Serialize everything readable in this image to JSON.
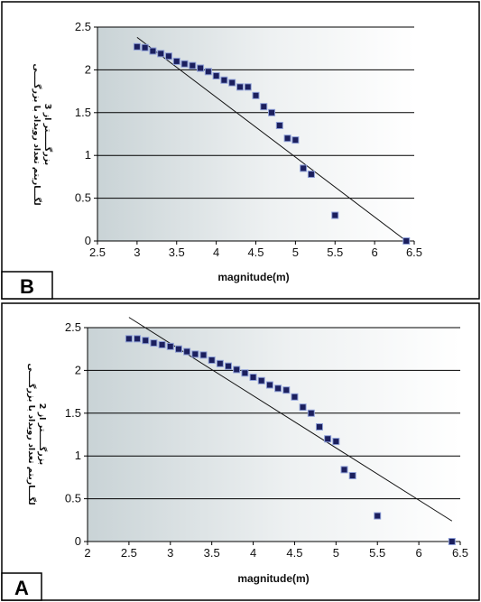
{
  "chart_data": [
    {
      "panel_label": "B",
      "type": "scatter",
      "xlabel": "magnitude(m)",
      "ylabel": [
        "لگـــاریتم تعداد رویداد با بزرگــــی",
        "بزرگـــــتر از 3"
      ],
      "xlim": [
        2.5,
        6.5
      ],
      "ylim": [
        0,
        2.5
      ],
      "xticks": [
        "2.5",
        "3",
        "3.5",
        "4",
        "4.5",
        "5",
        "5.5",
        "6",
        "6.5"
      ],
      "yticks": [
        "0",
        "0.5",
        "1",
        "1.5",
        "2",
        "2.5"
      ],
      "grid": "horizontal",
      "x": [
        3.0,
        3.1,
        3.2,
        3.3,
        3.4,
        3.5,
        3.6,
        3.7,
        3.8,
        3.9,
        4.0,
        4.1,
        4.2,
        4.3,
        4.4,
        4.5,
        4.6,
        4.7,
        4.8,
        4.9,
        5.0,
        5.1,
        5.2,
        5.5,
        6.4
      ],
      "y": [
        2.27,
        2.26,
        2.22,
        2.19,
        2.16,
        2.1,
        2.07,
        2.05,
        2.02,
        1.98,
        1.93,
        1.88,
        1.85,
        1.8,
        1.8,
        1.7,
        1.57,
        1.5,
        1.35,
        1.2,
        1.18,
        0.85,
        0.78,
        0.3,
        0.0
      ],
      "fit_line": {
        "x": [
          3.0,
          6.4
        ],
        "y": [
          2.38,
          0.0
        ]
      }
    },
    {
      "panel_label": "A",
      "type": "scatter",
      "xlabel": "magnitude(m)",
      "ylabel": [
        "لگـــاریتم تعداد رویداد با بزرگــــی",
        "بزرگـــــتر از 2"
      ],
      "xlim": [
        2,
        6.5
      ],
      "ylim": [
        0,
        2.5
      ],
      "xticks": [
        "2",
        "2.5",
        "3",
        "3.5",
        "4",
        "4.5",
        "5",
        "5.5",
        "6",
        "6.5"
      ],
      "yticks": [
        "0",
        "0.5",
        "1",
        "1.5",
        "2",
        "2.5"
      ],
      "grid": "horizontal",
      "x": [
        2.5,
        2.6,
        2.7,
        2.8,
        2.9,
        3.0,
        3.1,
        3.2,
        3.3,
        3.4,
        3.5,
        3.6,
        3.7,
        3.8,
        3.9,
        4.0,
        4.1,
        4.2,
        4.3,
        4.4,
        4.5,
        4.6,
        4.7,
        4.8,
        4.9,
        5.0,
        5.1,
        5.2,
        5.5,
        6.4
      ],
      "y": [
        2.37,
        2.37,
        2.35,
        2.32,
        2.3,
        2.28,
        2.25,
        2.22,
        2.19,
        2.18,
        2.12,
        2.08,
        2.05,
        2.01,
        1.97,
        1.92,
        1.88,
        1.83,
        1.79,
        1.77,
        1.69,
        1.57,
        1.5,
        1.34,
        1.2,
        1.17,
        0.84,
        0.77,
        0.3,
        0.0
      ],
      "fit_line": {
        "x": [
          2.5,
          6.4
        ],
        "y": [
          2.62,
          0.24
        ]
      }
    }
  ]
}
